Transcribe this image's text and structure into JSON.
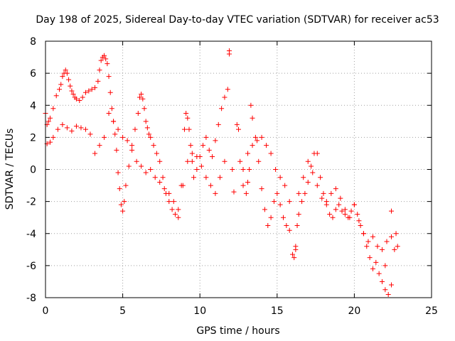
{
  "chart_data": {
    "type": "scatter",
    "title": "Day 198 of 2025, Sidereal Day-to-day VTEC variation (SDTVAR) for receiver ac53",
    "xlabel": "GPS time / hours",
    "ylabel": "SDTVAR / TECUs",
    "xlim": [
      0,
      25
    ],
    "ylim": [
      -8,
      8
    ],
    "xticks": [
      0,
      5,
      10,
      15,
      20,
      25
    ],
    "yticks": [
      -8,
      -6,
      -4,
      -2,
      0,
      2,
      4,
      6,
      8
    ],
    "grid": true,
    "marker": "+",
    "color": "#ff0000",
    "series": [
      {
        "name": "SDTVAR",
        "x": [
          0.0,
          0.1,
          0.2,
          0.3,
          0.5,
          0.7,
          0.9,
          1.0,
          1.1,
          1.2,
          1.3,
          1.4,
          1.5,
          1.6,
          1.7,
          1.8,
          1.9,
          2.0,
          2.2,
          2.4,
          2.6,
          2.8,
          3.0,
          3.2,
          3.4,
          3.5,
          3.6,
          3.7,
          3.8,
          3.9,
          4.0,
          4.1,
          4.2,
          4.3,
          4.4,
          4.5,
          4.6,
          4.7,
          4.8,
          4.9,
          5.0,
          5.1,
          5.2,
          5.4,
          5.6,
          5.8,
          6.0,
          6.1,
          6.2,
          6.3,
          6.4,
          6.5,
          6.6,
          6.7,
          6.8,
          7.0,
          7.2,
          7.4,
          7.6,
          7.8,
          8.0,
          8.2,
          8.4,
          8.6,
          8.8,
          9.0,
          9.1,
          9.2,
          9.3,
          9.4,
          9.5,
          9.6,
          9.8,
          10.0,
          10.2,
          10.4,
          10.6,
          10.8,
          11.0,
          11.2,
          11.4,
          11.6,
          11.8,
          11.9,
          12.1,
          12.2,
          12.4,
          12.6,
          12.8,
          13.0,
          13.1,
          13.2,
          13.3,
          13.4,
          13.6,
          13.8,
          14.0,
          14.2,
          14.4,
          14.6,
          14.8,
          15.0,
          15.2,
          15.4,
          15.6,
          15.8,
          16.0,
          16.1,
          16.2,
          16.3,
          16.4,
          16.6,
          16.8,
          17.0,
          17.2,
          17.4,
          17.6,
          17.8,
          18.0,
          18.2,
          18.4,
          18.6,
          18.8,
          19.0,
          19.2,
          19.4,
          19.6,
          19.8,
          20.0,
          20.2,
          20.4,
          20.6,
          20.8,
          21.0,
          21.2,
          21.4,
          21.6,
          21.8,
          22.0,
          22.2,
          22.4,
          22.6,
          22.8,
          0.1,
          0.3,
          0.5,
          0.8,
          1.1,
          1.4,
          1.7,
          2.0,
          2.3,
          2.6,
          2.9,
          3.2,
          3.5,
          3.8,
          4.1,
          4.4,
          4.7,
          5.0,
          5.3,
          5.6,
          5.9,
          6.2,
          6.5,
          6.8,
          7.1,
          7.4,
          7.7,
          8.0,
          8.3,
          8.6,
          8.9,
          9.2,
          9.5,
          9.8,
          10.1,
          10.4,
          10.7,
          11.0,
          11.3,
          11.6,
          12.5,
          12.8,
          13.1,
          13.4,
          13.7,
          14.0,
          14.3,
          14.6,
          14.9,
          15.2,
          15.5,
          15.8,
          16.4,
          16.7,
          17.0,
          17.3,
          17.6,
          17.9,
          18.2,
          18.5,
          18.8,
          19.1,
          19.4,
          19.7,
          20.0,
          20.3,
          20.6,
          20.9,
          21.2,
          21.5,
          21.8,
          22.1,
          22.4,
          22.7,
          11.9,
          16.2,
          22.0,
          22.4
        ],
        "y": [
          3.5,
          2.8,
          3.0,
          3.2,
          3.8,
          4.6,
          5.0,
          5.3,
          5.8,
          6.0,
          6.2,
          6.0,
          5.6,
          5.2,
          4.9,
          4.7,
          4.5,
          4.4,
          4.3,
          4.5,
          4.8,
          4.9,
          5.0,
          5.1,
          5.5,
          6.2,
          6.8,
          7.0,
          7.1,
          6.9,
          6.6,
          5.8,
          4.8,
          3.8,
          3.0,
          2.2,
          1.2,
          -0.2,
          -1.2,
          -2.2,
          -2.6,
          -2.0,
          -1.0,
          0.2,
          1.5,
          2.5,
          3.5,
          4.5,
          4.7,
          4.4,
          3.8,
          3.0,
          2.6,
          2.2,
          2.0,
          1.5,
          1.0,
          0.5,
          -0.5,
          -1.5,
          -2.0,
          -2.5,
          -2.8,
          -3.0,
          -1.0,
          2.5,
          3.5,
          3.2,
          2.5,
          1.5,
          0.5,
          -0.5,
          0.0,
          0.8,
          1.5,
          2.0,
          1.2,
          0.8,
          1.8,
          2.8,
          3.8,
          4.5,
          5.0,
          7.4,
          0.0,
          -1.4,
          2.8,
          0.5,
          -1.0,
          -1.5,
          -0.8,
          0.0,
          4.0,
          3.2,
          2.0,
          0.5,
          -1.2,
          -2.5,
          -3.5,
          -3.0,
          -2.0,
          -1.5,
          -2.2,
          -3.0,
          -3.5,
          -3.8,
          -5.3,
          -5.5,
          -4.8,
          -3.5,
          -2.8,
          -2.0,
          -1.5,
          -0.8,
          0.2,
          1.0,
          1.0,
          -0.5,
          -1.5,
          -2.0,
          -2.8,
          -3.0,
          -2.5,
          -2.2,
          -2.6,
          -2.8,
          -3.0,
          -2.6,
          -2.2,
          -2.8,
          -3.5,
          -4.0,
          -4.8,
          -5.5,
          -6.2,
          -5.8,
          -6.5,
          -7.0,
          -7.5,
          -7.8,
          -7.2,
          -5.0,
          -4.8,
          1.6,
          1.7,
          2.0,
          2.5,
          2.8,
          2.6,
          2.4,
          2.7,
          2.6,
          2.5,
          2.2,
          1.0,
          1.5,
          2.0,
          3.5,
          3.0,
          2.5,
          2.0,
          1.8,
          1.2,
          0.5,
          0.2,
          -0.2,
          0.0,
          -0.5,
          -0.8,
          -1.2,
          -1.5,
          -2.0,
          -2.5,
          -1.0,
          0.5,
          1.0,
          0.8,
          0.2,
          -0.5,
          -1.0,
          -1.5,
          -0.5,
          0.5,
          2.5,
          0.0,
          1.0,
          1.5,
          1.8,
          2.0,
          1.5,
          1.0,
          0.0,
          -0.5,
          -1.0,
          -2.0,
          -1.5,
          -0.5,
          0.5,
          -0.2,
          -1.0,
          -1.8,
          -2.2,
          -1.5,
          -1.2,
          -1.8,
          -2.5,
          -3.0,
          -2.2,
          -3.2,
          -4.0,
          -4.5,
          -4.2,
          -4.8,
          -5.0,
          -4.5,
          -4.2,
          -4.0,
          7.2,
          -5.0,
          -6.0,
          -2.6
        ]
      }
    ]
  }
}
